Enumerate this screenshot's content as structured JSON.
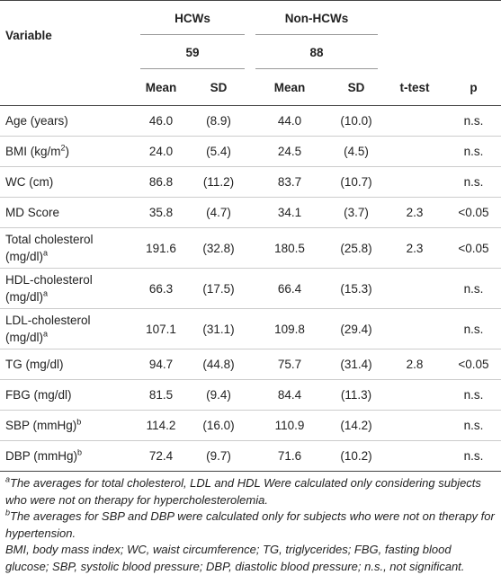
{
  "header": {
    "variable": "Variable",
    "groups": [
      {
        "name": "HCWs",
        "n": "59"
      },
      {
        "name": "Non-HCWs",
        "n": "88"
      }
    ],
    "columns": [
      "Mean",
      "SD",
      "Mean",
      "SD",
      "t-test",
      "p"
    ]
  },
  "rows": [
    {
      "label": "Age (years)",
      "cells": [
        "46.0",
        "(8.9)",
        "44.0",
        "(10.0)",
        null,
        "n.s."
      ]
    },
    {
      "label": "BMI (kg/m",
      "sup": "2",
      "label_end": ")",
      "cells": [
        "24.0",
        "(5.4)",
        "24.5",
        "(4.5)",
        null,
        "n.s."
      ]
    },
    {
      "label": "WC (cm)",
      "cells": [
        "86.8",
        "(11.2)",
        "83.7",
        "(10.7)",
        null,
        "n.s."
      ]
    },
    {
      "label": "MD Score",
      "cells": [
        "35.8",
        "(4.7)",
        "34.1",
        "(3.7)",
        "2.3",
        "<0.05"
      ]
    },
    {
      "label": "Total cholesterol (mg/dl)",
      "sup": "a",
      "cells": [
        "191.6",
        "(32.8)",
        "180.5",
        "(25.8)",
        "2.3",
        "<0.05"
      ]
    },
    {
      "label": "HDL-cholesterol (mg/dl)",
      "sup": "a",
      "cells": [
        "66.3",
        "(17.5)",
        "66.4",
        "(15.3)",
        null,
        "n.s."
      ]
    },
    {
      "label": "LDL-cholesterol (mg/dl)",
      "sup": "a",
      "cells": [
        "107.1",
        "(31.1)",
        "109.8",
        "(29.4)",
        null,
        "n.s."
      ]
    },
    {
      "label": "TG (mg/dl)",
      "cells": [
        "94.7",
        "(44.8)",
        "75.7",
        "(31.4)",
        "2.8",
        "<0.05"
      ]
    },
    {
      "label": "FBG (mg/dl)",
      "cells": [
        "81.5",
        "(9.4)",
        "84.4",
        "(11.3)",
        null,
        "n.s."
      ]
    },
    {
      "label": "SBP (mmHg)",
      "sup": "b",
      "cells": [
        "114.2",
        "(16.0)",
        "110.9",
        "(14.2)",
        null,
        "n.s."
      ]
    },
    {
      "label": "DBP (mmHg)",
      "sup": "b",
      "cells": [
        "72.4",
        "(9.7)",
        "71.6",
        "(10.2)",
        null,
        "n.s."
      ]
    }
  ],
  "notes": [
    {
      "sup": "a",
      "text": "The averages for total cholesterol, LDL and HDL Were calculated only considering subjects who were not on therapy for hypercholesterolemia."
    },
    {
      "sup": "b",
      "text": "The averages for SBP and DBP were calculated only for subjects who were not on therapy for hypertension."
    },
    {
      "text": "BMI, body mass index; WC, waist circumference; TG, triglycerides; FBG, fasting blood glucose; SBP, systolic blood pressure; DBP, diastolic blood pressure; n.s., not significant."
    }
  ]
}
